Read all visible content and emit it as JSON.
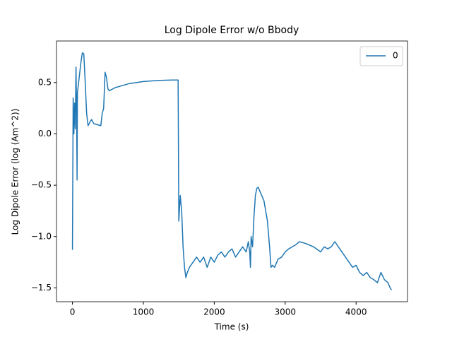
{
  "chart_data": {
    "type": "line",
    "title": "Log Dipole Error w/o Bbody",
    "xlabel": "Time (s)",
    "ylabel": "Log Dipole Error (log (Am^2))",
    "x": [
      0,
      10,
      20,
      30,
      40,
      50,
      60,
      65,
      70,
      90,
      120,
      140,
      160,
      180,
      200,
      220,
      250,
      270,
      300,
      350,
      400,
      420,
      440,
      460,
      480,
      500,
      520,
      600,
      700,
      800,
      900,
      1000,
      1200,
      1400,
      1490,
      1500,
      1520,
      1540,
      1560,
      1580,
      1600,
      1620,
      1650,
      1700,
      1750,
      1800,
      1850,
      1900,
      1950,
      2000,
      2050,
      2100,
      2150,
      2200,
      2250,
      2300,
      2350,
      2400,
      2450,
      2480,
      2500,
      2510,
      2520,
      2540,
      2560,
      2580,
      2600,
      2620,
      2650,
      2700,
      2750,
      2780,
      2800,
      2820,
      2850,
      2900,
      2950,
      3000,
      3050,
      3100,
      3150,
      3200,
      3300,
      3400,
      3500,
      3550,
      3600,
      3650,
      3700,
      3750,
      3800,
      3850,
      3900,
      3950,
      4000,
      4050,
      4100,
      4150,
      4200,
      4250,
      4300,
      4350,
      4400,
      4450,
      4480,
      4500
    ],
    "series": [
      {
        "name": "0",
        "color": "#1f77b4",
        "values": [
          -1.13,
          0.35,
          0.0,
          0.3,
          0.05,
          0.65,
          0.1,
          -0.45,
          0.4,
          0.52,
          0.7,
          0.79,
          0.78,
          0.5,
          0.2,
          0.08,
          0.12,
          0.14,
          0.1,
          0.09,
          0.08,
          0.2,
          0.25,
          0.6,
          0.55,
          0.44,
          0.42,
          0.45,
          0.47,
          0.49,
          0.5,
          0.51,
          0.52,
          0.525,
          0.525,
          -0.85,
          -0.6,
          -0.75,
          -1.1,
          -1.3,
          -1.4,
          -1.35,
          -1.3,
          -1.25,
          -1.2,
          -1.25,
          -1.2,
          -1.3,
          -1.2,
          -1.25,
          -1.18,
          -1.15,
          -1.2,
          -1.15,
          -1.12,
          -1.2,
          -1.15,
          -1.1,
          -1.15,
          -1.05,
          -1.15,
          -1.3,
          -1.0,
          -1.1,
          -0.8,
          -0.6,
          -0.53,
          -0.52,
          -0.57,
          -0.65,
          -0.85,
          -1.1,
          -1.3,
          -1.28,
          -1.3,
          -1.22,
          -1.2,
          -1.15,
          -1.12,
          -1.1,
          -1.08,
          -1.05,
          -1.07,
          -1.1,
          -1.15,
          -1.1,
          -1.12,
          -1.1,
          -1.05,
          -1.1,
          -1.15,
          -1.2,
          -1.25,
          -1.3,
          -1.28,
          -1.35,
          -1.38,
          -1.35,
          -1.4,
          -1.42,
          -1.45,
          -1.35,
          -1.42,
          -1.45,
          -1.5,
          -1.52
        ]
      }
    ],
    "xlim": [
      -225,
      4725
    ],
    "xticks": [
      0,
      1000,
      2000,
      3000,
      4000
    ],
    "ylim": [
      -1.635,
      0.905
    ],
    "yticks": [
      0.5,
      {
        "value": 0,
        "label": "0.0"
      },
      {
        "value": -0.5,
        "label": "−0.5"
      },
      {
        "value": -1.0,
        "label": "−1.0"
      },
      {
        "value": -1.5,
        "label": "−1.5"
      }
    ],
    "legend": "upper right"
  }
}
